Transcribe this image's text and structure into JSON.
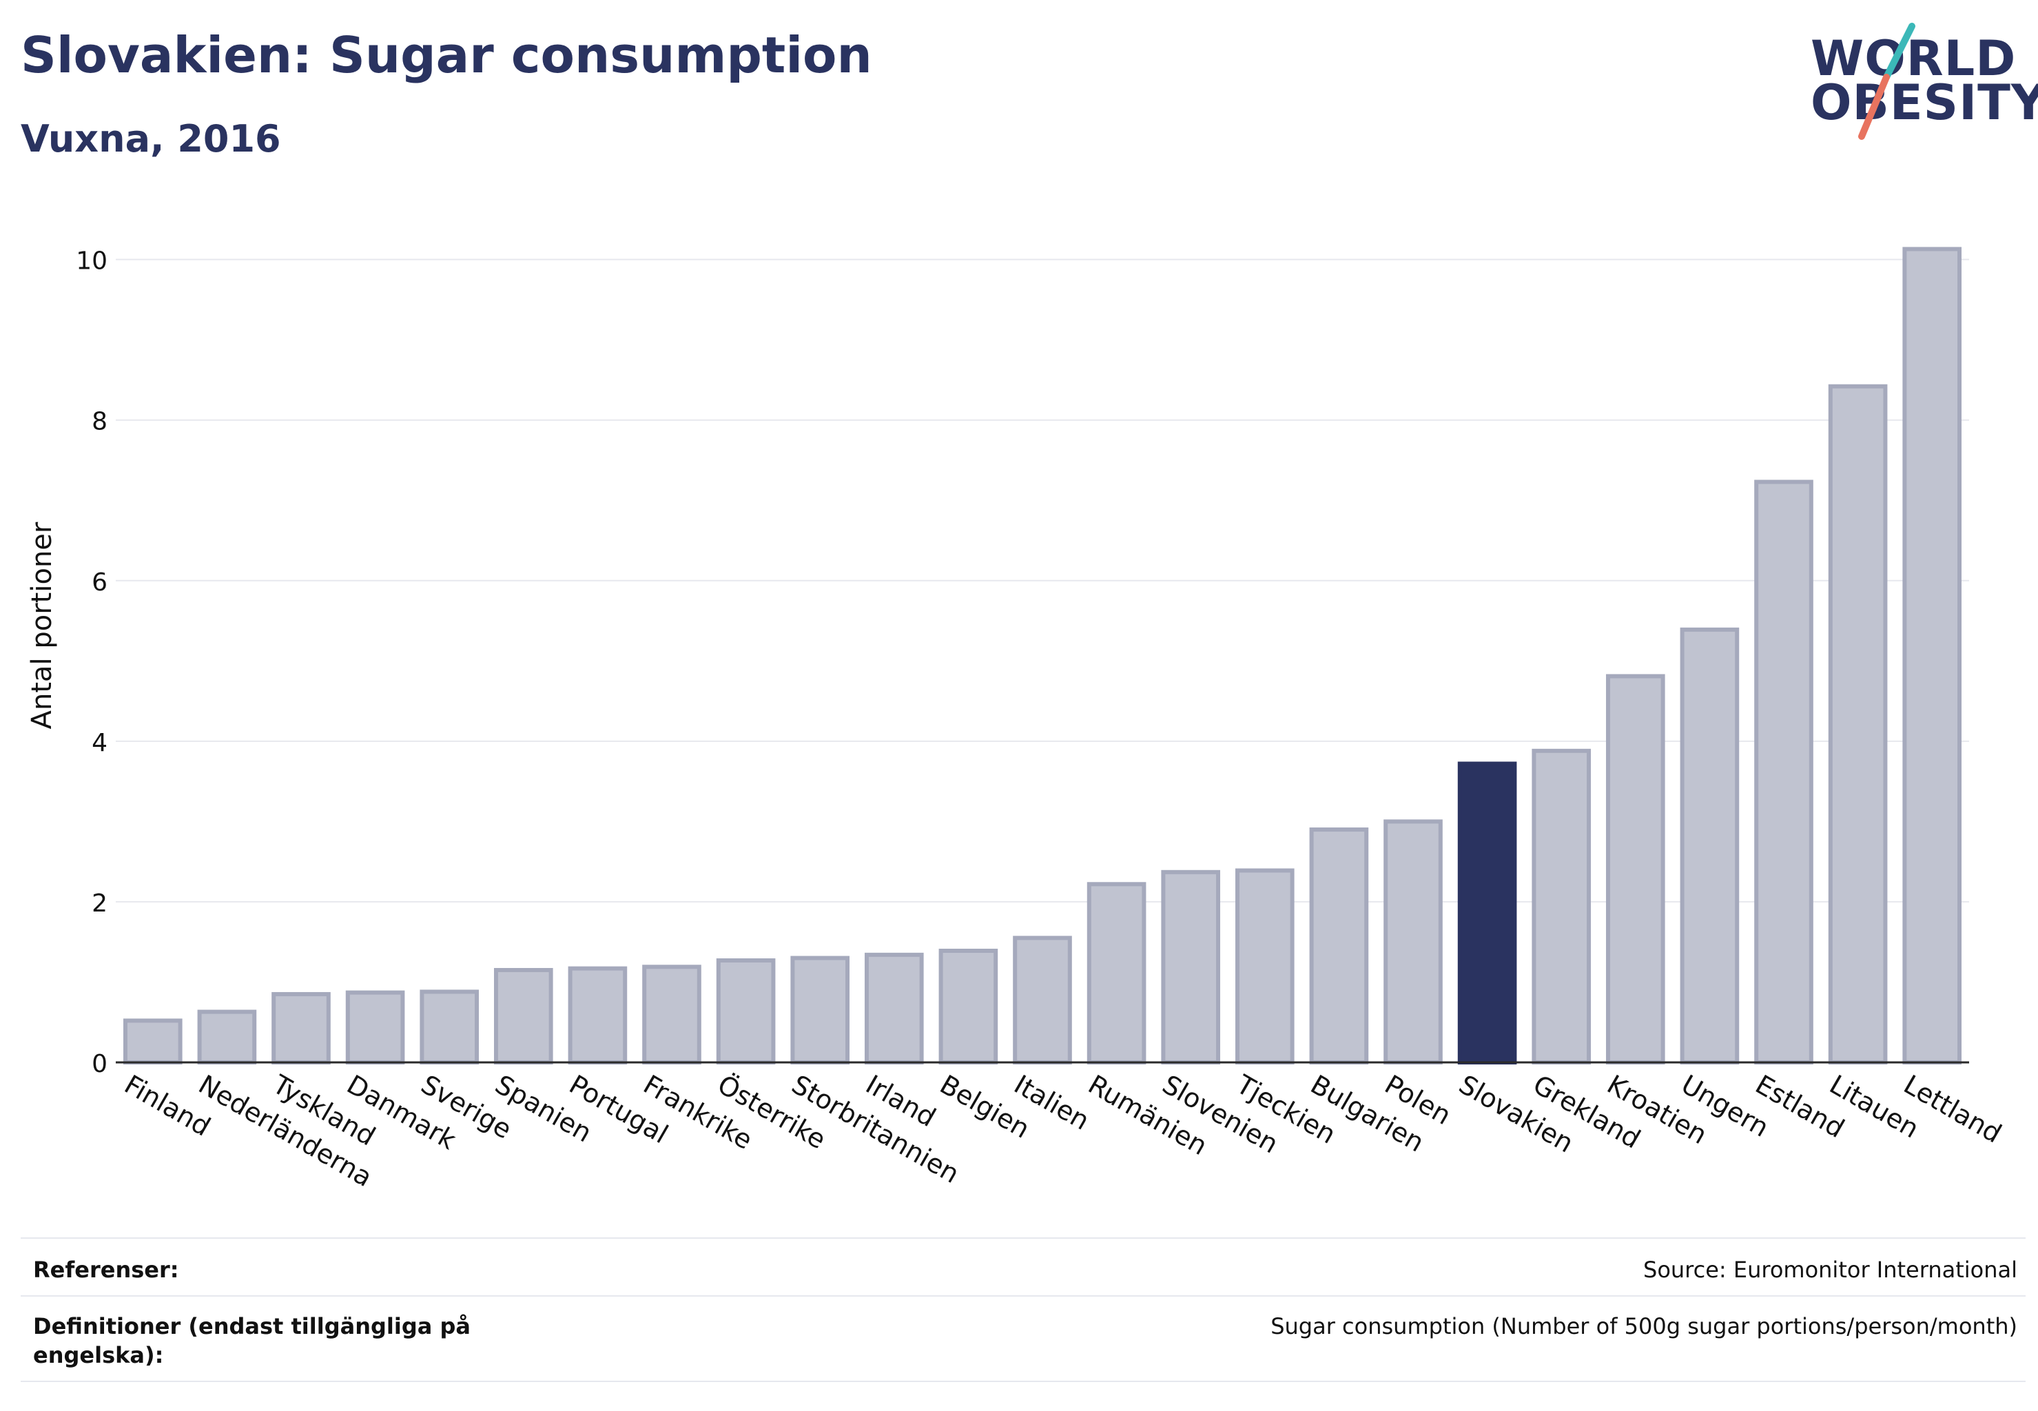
{
  "header": {
    "title": "Slovakien: Sugar consumption",
    "subtitle": "Vuxna, 2016",
    "logo_line1": "WORLD",
    "logo_line2": "OBESITY"
  },
  "colors": {
    "bar": "#c0c3d0",
    "bar_stroke": "#a5a9bc",
    "highlight": "#2a3360",
    "grid": "#e7e8ee",
    "axis": "#2a2a2a",
    "logo_teal": "#3bb8b8",
    "logo_coral": "#e8735f"
  },
  "chart_data": {
    "type": "bar",
    "title": "Slovakien: Sugar consumption",
    "subtitle": "Vuxna, 2016",
    "xlabel": "",
    "ylabel": "Antal portioner",
    "ylim": [
      0,
      10.4
    ],
    "yticks": [
      0,
      2,
      4,
      6,
      8,
      10
    ],
    "grid": true,
    "highlight_category": "Slovakien",
    "categories": [
      "Finland",
      "Nederländerna",
      "Tyskland",
      "Danmark",
      "Sverige",
      "Spanien",
      "Portugal",
      "Frankrike",
      "Österrike",
      "Storbritannien",
      "Irland",
      "Belgien",
      "Italien",
      "Rumänien",
      "Slovenien",
      "Tjeckien",
      "Bulgarien",
      "Polen",
      "Slovakien",
      "Grekland",
      "Kroatien",
      "Ungern",
      "Estland",
      "Litauen",
      "Lettland"
    ],
    "values": [
      0.52,
      0.63,
      0.85,
      0.87,
      0.88,
      1.15,
      1.17,
      1.19,
      1.27,
      1.3,
      1.34,
      1.39,
      1.55,
      2.22,
      2.37,
      2.39,
      2.9,
      3.0,
      3.72,
      3.88,
      4.81,
      5.39,
      7.23,
      8.42,
      10.13
    ]
  },
  "footer": {
    "references_label": "Referenser:",
    "references_value": "Source: Euromonitor International",
    "definitions_label": "Definitioner (endast tillgängliga på engelska):",
    "definitions_value": "Sugar consumption (Number of 500g sugar portions/person/month)"
  }
}
